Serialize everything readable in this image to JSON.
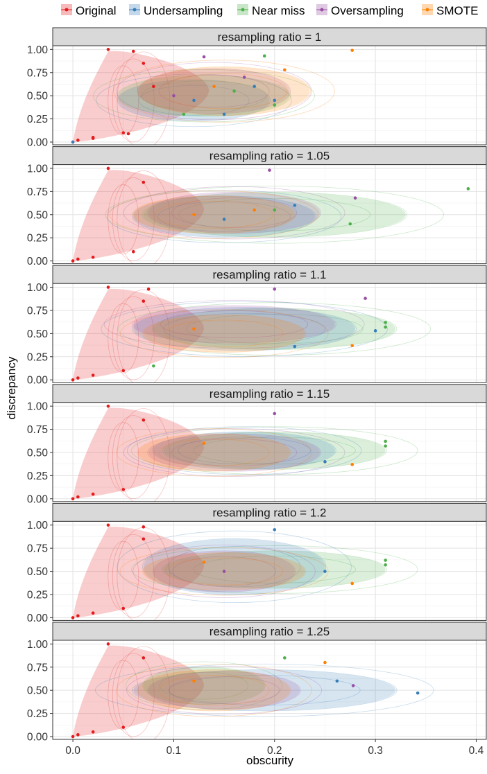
{
  "chart_data": {
    "type": "scatter",
    "xlabel": "obscurity",
    "ylabel": "discrepancy",
    "xlim": [
      -0.02,
      0.41
    ],
    "ylim": [
      -0.03,
      1.04
    ],
    "x_ticks": [
      "0.0",
      "0.1",
      "0.2",
      "0.3",
      "0.4"
    ],
    "x_tick_values": [
      0.0,
      0.1,
      0.2,
      0.3,
      0.4
    ],
    "y_ticks": [
      "0.00",
      "0.25",
      "0.50",
      "0.75",
      "1.00"
    ],
    "y_tick_values": [
      0.0,
      0.25,
      0.5,
      0.75,
      1.0
    ],
    "grid": true,
    "legend_position": "top",
    "legend": [
      {
        "name": "Original",
        "color": "#e41a1c"
      },
      {
        "name": "Undersampling",
        "color": "#377eb8"
      },
      {
        "name": "Near miss",
        "color": "#4daf4a"
      },
      {
        "name": "Oversampling",
        "color": "#984ea3"
      },
      {
        "name": "SMOTE",
        "color": "#ff7f00"
      }
    ],
    "panels": [
      {
        "title": "resampling ratio = 1",
        "regions": [
          {
            "series": "Original",
            "cx": 0.075,
            "cy": 0.45,
            "rx": 0.06,
            "ry": 0.5
          },
          {
            "series": "Undersampling",
            "cx": 0.12,
            "cy": 0.45,
            "rx": 0.075,
            "ry": 0.22
          },
          {
            "series": "Near miss",
            "cx": 0.13,
            "cy": 0.5,
            "rx": 0.085,
            "ry": 0.22
          },
          {
            "series": "Oversampling",
            "cx": 0.14,
            "cy": 0.55,
            "rx": 0.075,
            "ry": 0.24
          },
          {
            "series": "SMOTE",
            "cx": 0.15,
            "cy": 0.55,
            "rx": 0.085,
            "ry": 0.26
          }
        ],
        "points": [
          {
            "series": "Original",
            "x": 0.0,
            "y": 0.0
          },
          {
            "series": "Original",
            "x": 0.005,
            "y": 0.02
          },
          {
            "series": "Original",
            "x": 0.02,
            "y": 0.05
          },
          {
            "series": "Original",
            "x": 0.02,
            "y": 0.04
          },
          {
            "series": "Original",
            "x": 0.035,
            "y": 1.0
          },
          {
            "series": "Original",
            "x": 0.06,
            "y": 0.98
          },
          {
            "series": "Original",
            "x": 0.07,
            "y": 0.85
          },
          {
            "series": "Original",
            "x": 0.05,
            "y": 0.1
          },
          {
            "series": "Original",
            "x": 0.08,
            "y": 0.6
          },
          {
            "series": "Original",
            "x": 0.055,
            "y": 0.09
          },
          {
            "series": "Undersampling",
            "x": 0.0,
            "y": 0.0
          },
          {
            "series": "Undersampling",
            "x": 0.12,
            "y": 0.45
          },
          {
            "series": "Undersampling",
            "x": 0.18,
            "y": 0.6
          },
          {
            "series": "Undersampling",
            "x": 0.2,
            "y": 0.45
          },
          {
            "series": "Undersampling",
            "x": 0.15,
            "y": 0.3
          },
          {
            "series": "Near miss",
            "x": 0.19,
            "y": 0.93
          },
          {
            "series": "Near miss",
            "x": 0.11,
            "y": 0.3
          },
          {
            "series": "Near miss",
            "x": 0.16,
            "y": 0.55
          },
          {
            "series": "Near miss",
            "x": 0.2,
            "y": 0.4
          },
          {
            "series": "Oversampling",
            "x": 0.13,
            "y": 0.92
          },
          {
            "series": "Oversampling",
            "x": 0.1,
            "y": 0.5
          },
          {
            "series": "Oversampling",
            "x": 0.17,
            "y": 0.7
          },
          {
            "series": "SMOTE",
            "x": 0.277,
            "y": 0.99
          },
          {
            "series": "SMOTE",
            "x": 0.21,
            "y": 0.78
          },
          {
            "series": "SMOTE",
            "x": 0.14,
            "y": 0.6
          }
        ]
      },
      {
        "title": "resampling ratio = 1.05",
        "regions": [
          {
            "series": "Original",
            "cx": 0.07,
            "cy": 0.45,
            "rx": 0.06,
            "ry": 0.5
          },
          {
            "series": "Near miss",
            "cx": 0.2,
            "cy": 0.5,
            "rx": 0.13,
            "ry": 0.24
          },
          {
            "series": "Undersampling",
            "cx": 0.15,
            "cy": 0.48,
            "rx": 0.09,
            "ry": 0.22
          },
          {
            "series": "Oversampling",
            "cx": 0.16,
            "cy": 0.52,
            "rx": 0.085,
            "ry": 0.22
          },
          {
            "series": "SMOTE",
            "cx": 0.14,
            "cy": 0.5,
            "rx": 0.08,
            "ry": 0.2
          }
        ],
        "points": [
          {
            "series": "Original",
            "x": 0.0,
            "y": 0.0
          },
          {
            "series": "Original",
            "x": 0.005,
            "y": 0.02
          },
          {
            "series": "Original",
            "x": 0.02,
            "y": 0.04
          },
          {
            "series": "Original",
            "x": 0.035,
            "y": 1.0
          },
          {
            "series": "Original",
            "x": 0.07,
            "y": 0.85
          },
          {
            "series": "Original",
            "x": 0.06,
            "y": 0.1
          },
          {
            "series": "Near miss",
            "x": 0.392,
            "y": 0.78
          },
          {
            "series": "Near miss",
            "x": 0.275,
            "y": 0.4
          },
          {
            "series": "Near miss",
            "x": 0.2,
            "y": 0.55
          },
          {
            "series": "Undersampling",
            "x": 0.15,
            "y": 0.45
          },
          {
            "series": "Undersampling",
            "x": 0.22,
            "y": 0.6
          },
          {
            "series": "Oversampling",
            "x": 0.195,
            "y": 0.98
          },
          {
            "series": "Oversampling",
            "x": 0.28,
            "y": 0.68
          },
          {
            "series": "SMOTE",
            "x": 0.12,
            "y": 0.5
          },
          {
            "series": "SMOTE",
            "x": 0.18,
            "y": 0.55
          }
        ]
      },
      {
        "title": "resampling ratio = 1.1",
        "regions": [
          {
            "series": "Original",
            "cx": 0.07,
            "cy": 0.45,
            "rx": 0.06,
            "ry": 0.5
          },
          {
            "series": "Near miss",
            "cx": 0.2,
            "cy": 0.55,
            "rx": 0.12,
            "ry": 0.22
          },
          {
            "series": "Undersampling",
            "cx": 0.17,
            "cy": 0.55,
            "rx": 0.11,
            "ry": 0.23
          },
          {
            "series": "Oversampling",
            "cx": 0.16,
            "cy": 0.6,
            "rx": 0.1,
            "ry": 0.2
          },
          {
            "series": "SMOTE",
            "cx": 0.15,
            "cy": 0.5,
            "rx": 0.08,
            "ry": 0.2
          }
        ],
        "points": [
          {
            "series": "Original",
            "x": 0.0,
            "y": 0.0
          },
          {
            "series": "Original",
            "x": 0.005,
            "y": 0.02
          },
          {
            "series": "Original",
            "x": 0.02,
            "y": 0.05
          },
          {
            "series": "Original",
            "x": 0.035,
            "y": 1.0
          },
          {
            "series": "Original",
            "x": 0.075,
            "y": 0.98
          },
          {
            "series": "Original",
            "x": 0.07,
            "y": 0.85
          },
          {
            "series": "Original",
            "x": 0.05,
            "y": 0.1
          },
          {
            "series": "Near miss",
            "x": 0.31,
            "y": 0.62
          },
          {
            "series": "Near miss",
            "x": 0.31,
            "y": 0.57
          },
          {
            "series": "Near miss",
            "x": 0.08,
            "y": 0.15
          },
          {
            "series": "Undersampling",
            "x": 0.22,
            "y": 0.36
          },
          {
            "series": "Undersampling",
            "x": 0.3,
            "y": 0.53
          },
          {
            "series": "Oversampling",
            "x": 0.2,
            "y": 0.98
          },
          {
            "series": "Oversampling",
            "x": 0.29,
            "y": 0.88
          },
          {
            "series": "SMOTE",
            "x": 0.277,
            "y": 0.37
          },
          {
            "series": "SMOTE",
            "x": 0.12,
            "y": 0.55
          }
        ]
      },
      {
        "title": "resampling ratio = 1.15",
        "regions": [
          {
            "series": "Original",
            "cx": 0.07,
            "cy": 0.45,
            "rx": 0.06,
            "ry": 0.5
          },
          {
            "series": "Near miss",
            "cx": 0.2,
            "cy": 0.52,
            "rx": 0.11,
            "ry": 0.2
          },
          {
            "series": "Undersampling",
            "cx": 0.17,
            "cy": 0.52,
            "rx": 0.09,
            "ry": 0.2
          },
          {
            "series": "Oversampling",
            "cx": 0.16,
            "cy": 0.5,
            "rx": 0.085,
            "ry": 0.2
          },
          {
            "series": "SMOTE",
            "cx": 0.14,
            "cy": 0.5,
            "rx": 0.075,
            "ry": 0.2
          }
        ],
        "points": [
          {
            "series": "Original",
            "x": 0.0,
            "y": 0.0
          },
          {
            "series": "Original",
            "x": 0.005,
            "y": 0.02
          },
          {
            "series": "Original",
            "x": 0.02,
            "y": 0.05
          },
          {
            "series": "Original",
            "x": 0.035,
            "y": 1.0
          },
          {
            "series": "Original",
            "x": 0.07,
            "y": 0.85
          },
          {
            "series": "Original",
            "x": 0.05,
            "y": 0.1
          },
          {
            "series": "Near miss",
            "x": 0.31,
            "y": 0.62
          },
          {
            "series": "Near miss",
            "x": 0.31,
            "y": 0.57
          },
          {
            "series": "Undersampling",
            "x": 0.25,
            "y": 0.4
          },
          {
            "series": "Oversampling",
            "x": 0.2,
            "y": 0.92
          },
          {
            "series": "SMOTE",
            "x": 0.277,
            "y": 0.37
          },
          {
            "series": "SMOTE",
            "x": 0.13,
            "y": 0.6
          }
        ]
      },
      {
        "title": "resampling ratio = 1.2",
        "regions": [
          {
            "series": "Original",
            "cx": 0.07,
            "cy": 0.45,
            "rx": 0.06,
            "ry": 0.5
          },
          {
            "series": "Near miss",
            "cx": 0.2,
            "cy": 0.52,
            "rx": 0.11,
            "ry": 0.2
          },
          {
            "series": "Undersampling",
            "cx": 0.16,
            "cy": 0.55,
            "rx": 0.09,
            "ry": 0.3
          },
          {
            "series": "Oversampling",
            "cx": 0.15,
            "cy": 0.5,
            "rx": 0.07,
            "ry": 0.22
          },
          {
            "series": "SMOTE",
            "cx": 0.15,
            "cy": 0.5,
            "rx": 0.08,
            "ry": 0.2
          }
        ],
        "points": [
          {
            "series": "Original",
            "x": 0.0,
            "y": 0.0
          },
          {
            "series": "Original",
            "x": 0.005,
            "y": 0.02
          },
          {
            "series": "Original",
            "x": 0.02,
            "y": 0.05
          },
          {
            "series": "Original",
            "x": 0.035,
            "y": 1.0
          },
          {
            "series": "Original",
            "x": 0.07,
            "y": 0.98
          },
          {
            "series": "Original",
            "x": 0.07,
            "y": 0.85
          },
          {
            "series": "Original",
            "x": 0.05,
            "y": 0.1
          },
          {
            "series": "Near miss",
            "x": 0.31,
            "y": 0.62
          },
          {
            "series": "Near miss",
            "x": 0.31,
            "y": 0.57
          },
          {
            "series": "Undersampling",
            "x": 0.2,
            "y": 0.95
          },
          {
            "series": "Undersampling",
            "x": 0.25,
            "y": 0.5
          },
          {
            "series": "Oversampling",
            "x": 0.15,
            "y": 0.5
          },
          {
            "series": "SMOTE",
            "x": 0.277,
            "y": 0.37
          },
          {
            "series": "SMOTE",
            "x": 0.13,
            "y": 0.6
          }
        ]
      },
      {
        "title": "resampling ratio = 1.25",
        "regions": [
          {
            "series": "Original",
            "cx": 0.07,
            "cy": 0.45,
            "rx": 0.06,
            "ry": 0.5
          },
          {
            "series": "Undersampling",
            "cx": 0.19,
            "cy": 0.5,
            "rx": 0.13,
            "ry": 0.22
          },
          {
            "series": "Near miss",
            "cx": 0.13,
            "cy": 0.55,
            "rx": 0.06,
            "ry": 0.2
          },
          {
            "series": "Oversampling",
            "cx": 0.15,
            "cy": 0.5,
            "rx": 0.075,
            "ry": 0.2
          },
          {
            "series": "SMOTE",
            "cx": 0.14,
            "cy": 0.5,
            "rx": 0.075,
            "ry": 0.22
          }
        ],
        "points": [
          {
            "series": "Original",
            "x": 0.0,
            "y": 0.0
          },
          {
            "series": "Original",
            "x": 0.005,
            "y": 0.02
          },
          {
            "series": "Original",
            "x": 0.02,
            "y": 0.05
          },
          {
            "series": "Original",
            "x": 0.035,
            "y": 1.0
          },
          {
            "series": "Original",
            "x": 0.07,
            "y": 0.85
          },
          {
            "series": "Original",
            "x": 0.05,
            "y": 0.1
          },
          {
            "series": "Undersampling",
            "x": 0.342,
            "y": 0.47
          },
          {
            "series": "Undersampling",
            "x": 0.262,
            "y": 0.6
          },
          {
            "series": "Oversampling",
            "x": 0.278,
            "y": 0.55
          },
          {
            "series": "Near miss",
            "x": 0.21,
            "y": 0.85
          },
          {
            "series": "SMOTE",
            "x": 0.25,
            "y": 0.8
          },
          {
            "series": "SMOTE",
            "x": 0.12,
            "y": 0.6
          }
        ]
      }
    ]
  }
}
